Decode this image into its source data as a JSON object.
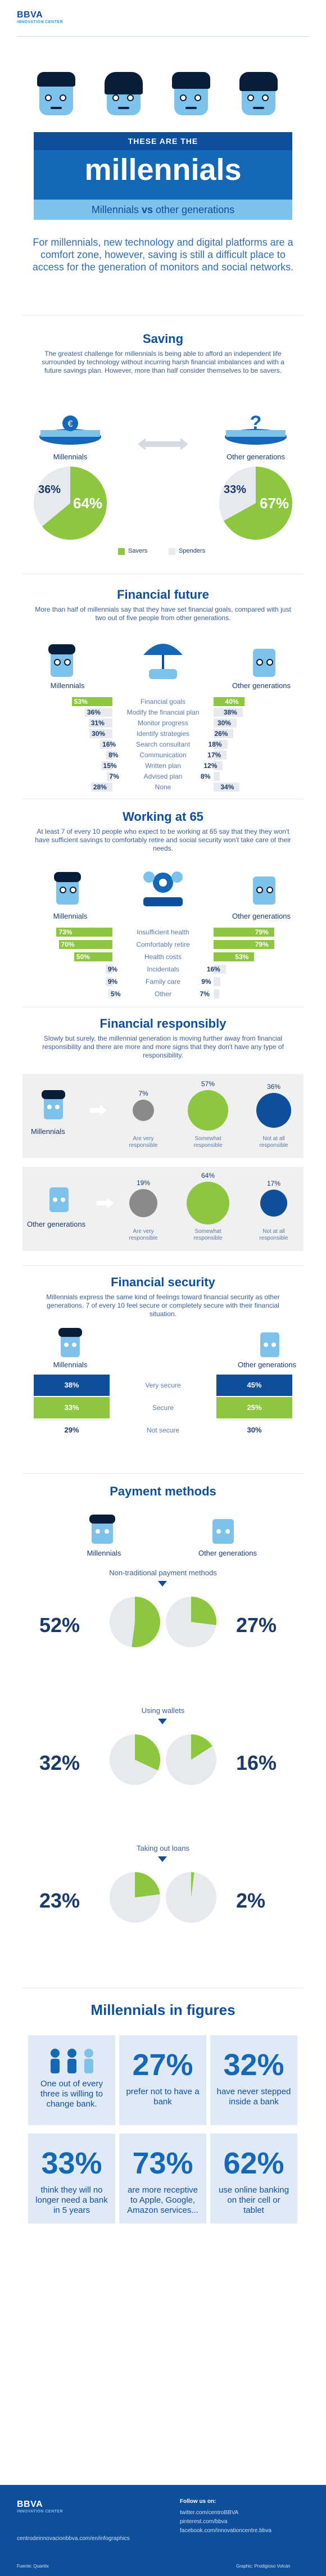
{
  "header": {
    "logo": "BBVA",
    "logo_sub": "INNOVATION CENTER"
  },
  "banner": {
    "small": "THESE ARE THE",
    "big": "millennials",
    "vs_left": "Millennials",
    "vs_mid": "vs",
    "vs_right": "other generations"
  },
  "intro": "For millennials, new technology and digital platforms are a comfort zone, however, saving is still a difficult place to access for the generation of monitors and social networks.",
  "saving": {
    "title": "Saving",
    "desc": "The greatest challenge for millennials is being able to afford an independent life surrounded by technology without incurring harsh financial imbalances and with a future savings plan. However, more than half consider themselves to be savers.",
    "left_label": "Millennials",
    "right_label": "Other generations",
    "left_savers": "64%",
    "left_spenders": "36%",
    "right_savers": "67%",
    "right_spenders": "33%",
    "left_savers_frac": 0.64,
    "right_savers_frac": 0.67,
    "legend_savers": "Savers",
    "legend_spenders": "Spenders"
  },
  "financial_future": {
    "title": "Financial future",
    "desc": "More than half of millennials say that they have set financial goals, compared with just two out of five people from other generations.",
    "left_label": "Millennials",
    "right_label": "Other generations",
    "rows": [
      {
        "label": "Financial goals",
        "left": "53%",
        "right": "40%",
        "l": 53,
        "r": 40
      },
      {
        "label": "Modify the financial plan",
        "left": "36%",
        "right": "38%",
        "l": 36,
        "r": 38
      },
      {
        "label": "Monitor progress",
        "left": "31%",
        "right": "30%",
        "l": 31,
        "r": 30
      },
      {
        "label": "Identify strategies",
        "left": "30%",
        "right": "26%",
        "l": 30,
        "r": 26
      },
      {
        "label": "Search consultant",
        "left": "16%",
        "right": "18%",
        "l": 16,
        "r": 18
      },
      {
        "label": "Communication",
        "left": "8%",
        "right": "17%",
        "l": 8,
        "r": 17
      },
      {
        "label": "Written plan",
        "left": "15%",
        "right": "12%",
        "l": 15,
        "r": 12
      },
      {
        "label": "Advised plan",
        "left": "7%",
        "right": "8%",
        "l": 7,
        "r": 8
      },
      {
        "label": "None",
        "left": "28%",
        "right": "34%",
        "l": 28,
        "r": 34
      }
    ]
  },
  "working": {
    "title": "Working at 65",
    "desc": "At least 7 of every 10 people who expect to be working at 65 say that they they won't have sufficient savings to comfortably retire and social security won't take care of their needs.",
    "left_label": "Millennials",
    "right_label": "Other generations",
    "rows": [
      {
        "label": "Insufficient health",
        "left": "73%",
        "right": "79%",
        "l": 73,
        "r": 79
      },
      {
        "label": "Comfortably retire",
        "left": "70%",
        "right": "79%",
        "l": 70,
        "r": 79
      },
      {
        "label": "Health costs",
        "left": "50%",
        "right": "53%",
        "l": 50,
        "r": 53
      },
      {
        "label": "Incidentals",
        "left": "9%",
        "right": "16%",
        "l": 9,
        "r": 16
      },
      {
        "label": "Family care",
        "left": "9%",
        "right": "9%",
        "l": 9,
        "r": 9
      },
      {
        "label": "Other",
        "left": "5%",
        "right": "7%",
        "l": 5,
        "r": 7
      }
    ]
  },
  "responsibly": {
    "title": "Financial responsibly",
    "desc": "Slowly but surely, the millennial generation is moving further away from financial responsibility and there are more and more signs that they don't have any type of responsibility.",
    "millennials": {
      "label": "Millennials",
      "vals": [
        "7%",
        "57%",
        "36%"
      ],
      "fracs": [
        0.07,
        0.57,
        0.36
      ]
    },
    "others": {
      "label": "Other generations",
      "vals": [
        "19%",
        "64%",
        "17%"
      ],
      "fracs": [
        0.19,
        0.64,
        0.17
      ]
    },
    "cats": [
      "Are very responsible",
      "Somewhat responsible",
      "Not at all responsible"
    ]
  },
  "security": {
    "title": "Financial security",
    "desc": "Millennials express the same kind of feelings toward financial security as other generations. 7 of every 10 feel secure or completely secure with their financial situation.",
    "left_label": "Millennials",
    "right_label": "Other generations",
    "rows": [
      {
        "label": "Very secure",
        "left": "38%",
        "right": "45%"
      },
      {
        "label": "Secure",
        "left": "33%",
        "right": "25%"
      },
      {
        "label": "Not secure",
        "left": "29%",
        "right": "30%"
      }
    ]
  },
  "payment": {
    "title": "Payment methods",
    "left_label": "Millennials",
    "right_label": "Other generations",
    "groups": [
      {
        "label": "Non-traditional payment methods",
        "left": "52%",
        "right": "27%",
        "l": 0.52,
        "r": 0.27
      },
      {
        "label": "Using wallets",
        "left": "32%",
        "right": "16%",
        "l": 0.32,
        "r": 0.16
      },
      {
        "label": "Taking out loans",
        "left": "23%",
        "right": "2%",
        "l": 0.23,
        "r": 0.02
      }
    ]
  },
  "figures": {
    "title_prefix": "Millennials",
    "title_suffix": "in figures",
    "boxes": [
      {
        "big": "",
        "text": "One out of every three is willing to change bank."
      },
      {
        "big": "27%",
        "text": "prefer not to have a bank"
      },
      {
        "big": "32%",
        "text": "have never stepped inside a bank"
      },
      {
        "big": "33%",
        "text": "think they will no longer need a bank in 5 years"
      },
      {
        "big": "73%",
        "text": "are more receptive to Apple, Google, Amazon services..."
      },
      {
        "big": "62%",
        "text": "use online banking on their cell or tablet"
      }
    ]
  },
  "footer": {
    "logo": "BBVA",
    "logo_sub": "INNOVATION CENTER",
    "follow": "Follow us on:",
    "links": [
      "twitter.com/centroBBVA",
      "pinterest.com/bbva",
      "facebook.com/innovationcentre.bbva"
    ],
    "site": "centrodeinnovacionbbva.com/en/infographics",
    "source": "Fuente: Quantix",
    "credits": "Graphic: Prodigioso Volcán"
  },
  "colors": {
    "navy": "#0e4f9c",
    "blue": "#1567b8",
    "light_blue": "#7cc2ea",
    "lime": "#8dc63f",
    "grey": "#e6e9ee"
  }
}
